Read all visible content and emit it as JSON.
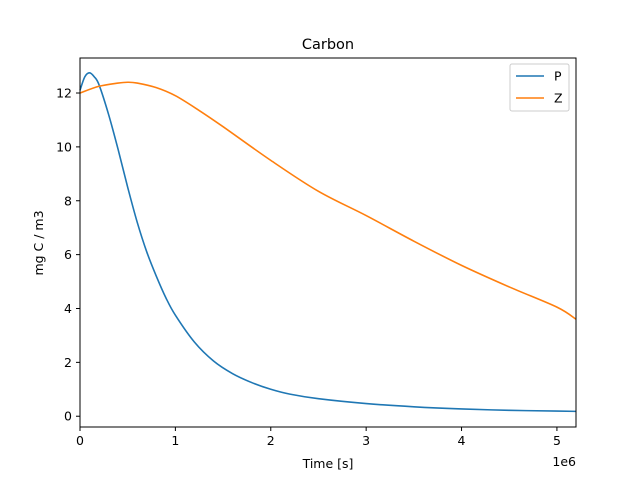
{
  "chart_data": {
    "type": "line",
    "title": "Carbon",
    "xlabel": "Time [s]",
    "ylabel": "mg C / m3",
    "x_offset_label": "1e6",
    "xlim": [
      0,
      5.2
    ],
    "ylim": [
      -0.4,
      13.3
    ],
    "x_scale_factor": 1000000,
    "xticks": [
      0,
      1,
      2,
      3,
      4,
      5
    ],
    "xtick_labels": [
      "0",
      "1",
      "2",
      "3",
      "4",
      "5"
    ],
    "yticks": [
      0,
      2,
      4,
      6,
      8,
      10,
      12
    ],
    "ytick_labels": [
      "0",
      "2",
      "4",
      "6",
      "8",
      "10",
      "12"
    ],
    "grid": false,
    "legend_position": "top-right",
    "series": [
      {
        "name": "P",
        "color": "#1f77b4",
        "x": [
          0,
          0.05,
          0.1,
          0.15,
          0.2,
          0.3,
          0.4,
          0.5,
          0.6,
          0.7,
          0.8,
          0.9,
          1.0,
          1.2,
          1.4,
          1.6,
          1.8,
          2.0,
          2.2,
          2.5,
          3.0,
          3.5,
          4.0,
          4.5,
          5.0,
          5.2
        ],
        "y": [
          12.1,
          12.6,
          12.75,
          12.6,
          12.3,
          11.2,
          9.9,
          8.5,
          7.2,
          6.1,
          5.2,
          4.4,
          3.75,
          2.75,
          2.05,
          1.58,
          1.25,
          1.0,
          0.82,
          0.65,
          0.47,
          0.35,
          0.27,
          0.22,
          0.19,
          0.18
        ]
      },
      {
        "name": "Z",
        "color": "#ff7f0e",
        "x": [
          0,
          0.2,
          0.4,
          0.5,
          0.6,
          0.8,
          1.0,
          1.25,
          1.5,
          2.0,
          2.5,
          3.0,
          3.5,
          4.0,
          4.5,
          5.0,
          5.2
        ],
        "y": [
          12.0,
          12.25,
          12.37,
          12.4,
          12.37,
          12.2,
          11.9,
          11.35,
          10.75,
          9.5,
          8.35,
          7.45,
          6.5,
          5.6,
          4.8,
          4.05,
          3.6
        ]
      }
    ]
  }
}
